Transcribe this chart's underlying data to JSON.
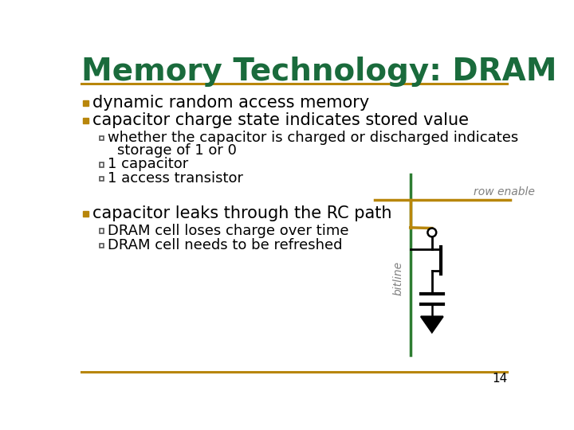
{
  "title": "Memory Technology: DRAM",
  "title_color": "#1a6b3c",
  "title_fontsize": 28,
  "separator_color": "#b8860b",
  "background_color": "#ffffff",
  "bullet_color": "#b8860b",
  "text_color": "#000000",
  "slide_number": "14",
  "circuit": {
    "bitline_color": "#2e7d32",
    "rowline_color": "#b8860b",
    "label_color": "#808080",
    "row_enable_text": "row enable",
    "bitline_text": "bitline"
  }
}
